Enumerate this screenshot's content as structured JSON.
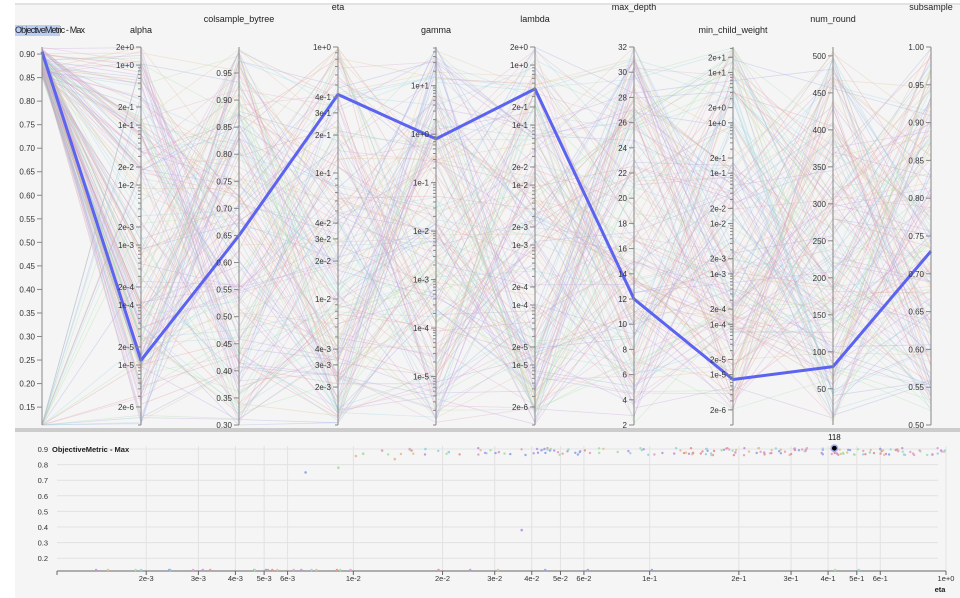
{
  "chart_data": [
    {
      "type": "parallel_coordinates",
      "axes": [
        {
          "name": "ObjectiveMetric - Max",
          "scale": "linear",
          "range": [
            0.112,
            0.915
          ],
          "ticks": [
            0.15,
            0.2,
            0.25,
            0.3,
            0.35,
            0.4,
            0.45,
            0.5,
            0.55,
            0.6,
            0.65,
            0.7,
            0.75,
            0.8,
            0.85,
            0.9
          ],
          "tick_labels": [
            "0.15",
            "0.20",
            "0.25",
            "0.30",
            "0.35",
            "0.40",
            "0.45",
            "0.50",
            "0.55",
            "0.60",
            "0.65",
            "0.70",
            "0.75",
            "0.80",
            "0.85",
            "0.90"
          ]
        },
        {
          "name": "alpha",
          "scale": "log",
          "range": [
            1e-06,
            2
          ],
          "ticks": [
            2,
            1,
            0.2,
            0.1,
            0.02,
            0.01,
            0.002,
            0.001,
            0.0002,
            0.0001,
            2e-05,
            1e-05,
            2e-06
          ],
          "tick_labels": [
            "2e+0",
            "1e+0",
            "2e-1",
            "1e-1",
            "2e-2",
            "1e-2",
            "2e-3",
            "1e-3",
            "2e-4",
            "1e-4",
            "2e-5",
            "1e-5",
            "2e-6"
          ]
        },
        {
          "name": "colsample_bytree",
          "scale": "linear",
          "range": [
            0.3,
            0.998
          ],
          "ticks": [
            0.3,
            0.35,
            0.4,
            0.45,
            0.5,
            0.55,
            0.6,
            0.65,
            0.7,
            0.75,
            0.8,
            0.85,
            0.9,
            0.95
          ],
          "tick_labels": [
            "0.30",
            "0.35",
            "0.40",
            "0.45",
            "0.50",
            "0.55",
            "0.60",
            "0.65",
            "0.70",
            "0.75",
            "0.80",
            "0.85",
            "0.90",
            "0.95"
          ]
        },
        {
          "name": "eta",
          "scale": "log",
          "range": [
            0.001,
            1
          ],
          "ticks": [
            1,
            0.4,
            0.3,
            0.2,
            0.1,
            0.04,
            0.03,
            0.02,
            0.01,
            0.004,
            0.003,
            0.002
          ],
          "tick_labels": [
            "1e+0",
            "4e-1",
            "3e-1",
            "2e-1",
            "1e-1",
            "4e-2",
            "3e-2",
            "2e-2",
            "1e-2",
            "4e-3",
            "3e-3",
            "2e-3"
          ]
        },
        {
          "name": "gamma",
          "scale": "log",
          "range": [
            1e-06,
            63
          ],
          "ticks": [
            10,
            1,
            0.1,
            0.01,
            0.001,
            0.0001,
            1e-05
          ],
          "tick_labels": [
            "1e+1",
            "1e+0",
            "1e-1",
            "1e-2",
            "1e-3",
            "1e-4",
            "1e-5"
          ]
        },
        {
          "name": "lambda",
          "scale": "log",
          "range": [
            1e-06,
            2
          ],
          "ticks": [
            2,
            1,
            0.2,
            0.1,
            0.02,
            0.01,
            0.002,
            0.001,
            0.0002,
            0.0001,
            2e-05,
            1e-05,
            2e-06
          ],
          "tick_labels": [
            "2e+0",
            "1e+0",
            "2e-1",
            "1e-1",
            "2e-2",
            "1e-2",
            "2e-3",
            "1e-3",
            "2e-4",
            "1e-4",
            "2e-5",
            "1e-5",
            "2e-6"
          ]
        },
        {
          "name": "max_depth",
          "scale": "linear",
          "range": [
            2,
            32
          ],
          "ticks": [
            2,
            4,
            6,
            8,
            10,
            12,
            14,
            16,
            18,
            20,
            22,
            24,
            26,
            28,
            30,
            32
          ],
          "tick_labels": [
            "2",
            "4",
            "6",
            "8",
            "10",
            "12",
            "14",
            "16",
            "18",
            "20",
            "22",
            "24",
            "26",
            "28",
            "30",
            "32"
          ]
        },
        {
          "name": "min_child_weight",
          "scale": "log",
          "range": [
            1e-06,
            32
          ],
          "ticks": [
            20,
            10,
            2,
            1,
            0.2,
            0.1,
            0.02,
            0.01,
            0.002,
            0.001,
            0.0002,
            0.0001,
            2e-05,
            1e-05,
            2e-06
          ],
          "tick_labels": [
            "2e+1",
            "1e+1",
            "2e+0",
            "1e+0",
            "2e-1",
            "1e-1",
            "2e-2",
            "1e-2",
            "2e-3",
            "1e-3",
            "2e-4",
            "1e-4",
            "2e-5",
            "1e-5",
            "2e-6"
          ]
        },
        {
          "name": "num_round",
          "scale": "linear",
          "range": [
            1,
            512
          ],
          "ticks": [
            50,
            100,
            150,
            200,
            250,
            300,
            350,
            400,
            450,
            500
          ],
          "tick_labels": [
            "50",
            "100",
            "150",
            "200",
            "250",
            "300",
            "350",
            "400",
            "450",
            "500"
          ]
        },
        {
          "name": "subsample",
          "scale": "linear",
          "range": [
            0.5,
            1.0
          ],
          "ticks": [
            0.5,
            0.55,
            0.6,
            0.65,
            0.7,
            0.75,
            0.8,
            0.85,
            0.9,
            0.95,
            1.0
          ],
          "tick_labels": [
            "0.50",
            "0.55",
            "0.60",
            "0.65",
            "0.70",
            "0.75",
            "0.80",
            "0.85",
            "0.90",
            "0.95",
            "1.00"
          ]
        }
      ],
      "highlighted_trial": {
        "id": "118",
        "color": "#5b63f0",
        "values": [
          0.905,
          1.2e-05,
          0.65,
          0.42,
          0.8,
          0.4,
          12,
          8e-06,
          80,
          0.73
        ]
      },
      "grid": false
    },
    {
      "type": "scatter",
      "xlabel": "eta",
      "ylabel": "ObjectiveMetric - Max",
      "xscale": "log",
      "xlim": [
        0.001,
        1
      ],
      "ylim": [
        0.12,
        0.91
      ],
      "x_ticks": [
        0.002,
        0.003,
        0.004,
        0.005,
        0.006,
        0.01,
        0.02,
        0.03,
        0.04,
        0.05,
        0.06,
        0.1,
        0.2,
        0.3,
        0.4,
        0.5,
        0.6,
        1
      ],
      "x_tick_labels": [
        "2e-3",
        "3e-3",
        "4e-3",
        "5e-3",
        "6e-3",
        "1e-2",
        "2e-2",
        "3e-2",
        "4e-2",
        "5e-2",
        "6e-2",
        "1e-1",
        "2e-1",
        "3e-1",
        "4e-1",
        "5e-1",
        "6e-1",
        "1e+0"
      ],
      "y_ticks": [
        0.2,
        0.3,
        0.4,
        0.5,
        0.6,
        0.7,
        0.8,
        0.9
      ],
      "y_tick_labels": [
        "0.2",
        "0.3",
        "0.4",
        "0.5",
        "0.6",
        "0.7",
        "0.8",
        "0.9"
      ],
      "grid": true,
      "highlighted_point": {
        "label": "118",
        "x": 0.42,
        "y": 0.905
      },
      "points_sample": [
        {
          "x": 0.0069,
          "y": 0.75
        },
        {
          "x": 0.0089,
          "y": 0.78
        },
        {
          "x": 0.0102,
          "y": 0.855
        },
        {
          "x": 0.0108,
          "y": 0.87
        },
        {
          "x": 0.0125,
          "y": 0.89
        },
        {
          "x": 0.0138,
          "y": 0.835
        },
        {
          "x": 0.0155,
          "y": 0.9
        },
        {
          "x": 0.0175,
          "y": 0.9
        },
        {
          "x": 0.021,
          "y": 0.88
        },
        {
          "x": 0.037,
          "y": 0.38
        },
        {
          "x": 0.031,
          "y": 0.88
        },
        {
          "x": 0.14,
          "y": 0.875
        },
        {
          "x": 0.6,
          "y": 0.9
        },
        {
          "x": 0.9,
          "y": 0.865
        }
      ]
    }
  ]
}
